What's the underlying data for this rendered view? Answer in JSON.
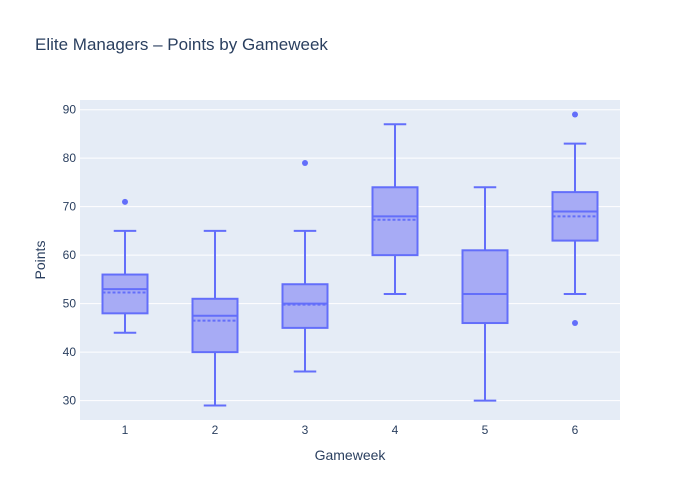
{
  "chart_data": {
    "type": "box",
    "title": "Elite Managers – Points by Gameweek",
    "xlabel": "Gameweek",
    "ylabel": "Points",
    "categories": [
      "1",
      "2",
      "3",
      "4",
      "5",
      "6"
    ],
    "yticks": [
      30,
      40,
      50,
      60,
      70,
      80,
      90
    ],
    "ylim": [
      26,
      92
    ],
    "boxes": [
      {
        "x": "1",
        "min": 44,
        "q1": 48,
        "median": 53,
        "mean": 52.3,
        "q3": 56,
        "max": 65,
        "outliers": [
          71
        ]
      },
      {
        "x": "2",
        "min": 29,
        "q1": 40,
        "median": 47.5,
        "mean": 46.5,
        "q3": 51,
        "max": 65,
        "outliers": []
      },
      {
        "x": "3",
        "min": 36,
        "q1": 45,
        "median": 50,
        "mean": 49.8,
        "q3": 54,
        "max": 65,
        "outliers": [
          79
        ]
      },
      {
        "x": "4",
        "min": 52,
        "q1": 60,
        "median": 68,
        "mean": 67.3,
        "q3": 74,
        "max": 87,
        "outliers": []
      },
      {
        "x": "5",
        "min": 30,
        "q1": 46,
        "median": 52,
        "mean": 52,
        "q3": 61,
        "max": 74,
        "outliers": []
      },
      {
        "x": "6",
        "min": 52,
        "q1": 63,
        "median": 69,
        "mean": 68,
        "q3": 73,
        "max": 83,
        "outliers": [
          46,
          89
        ]
      }
    ],
    "grid": true,
    "colors": {
      "box_line": "#636efa",
      "box_fill": "#a7abf5",
      "plot_bg": "#e5ecf6",
      "grid": "#ffffff",
      "text": "#2a3f5f"
    }
  }
}
